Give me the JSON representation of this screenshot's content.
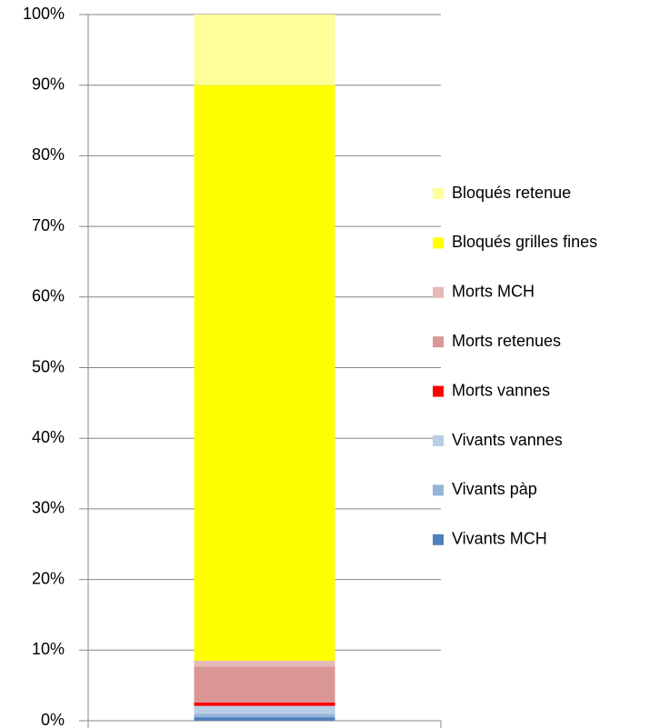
{
  "chart_data": {
    "type": "stacked_bar_100",
    "categories": [
      null
    ],
    "series": [
      {
        "name": "Vivants MCH",
        "color": "#4f81bd",
        "values": [
          0.5
        ]
      },
      {
        "name": "Vivants pàp",
        "color": "#95b3d7",
        "values": [
          0.5
        ]
      },
      {
        "name": "Vivants vannes",
        "color": "#b9cde5",
        "values": [
          1.1
        ]
      },
      {
        "name": "Morts vannes",
        "color": "#ff0000",
        "values": [
          0.5
        ]
      },
      {
        "name": "Morts retenues",
        "color": "#d99694",
        "values": [
          5.1
        ]
      },
      {
        "name": "Morts MCH",
        "color": "#e6b9b8",
        "values": [
          0.8
        ]
      },
      {
        "name": "Bloqués grilles fines",
        "color": "#ffff00",
        "values": [
          81.5
        ]
      },
      {
        "name": "Bloqués retenue",
        "color": "#ffff99",
        "values": [
          10
        ]
      }
    ],
    "ylim": [
      0,
      100
    ],
    "yticks": [
      {
        "value": 0,
        "label": "0%"
      },
      {
        "value": 10,
        "label": "10%"
      },
      {
        "value": 20,
        "label": "20%"
      },
      {
        "value": 30,
        "label": "30%"
      },
      {
        "value": 40,
        "label": "40%"
      },
      {
        "value": 50,
        "label": "50%"
      },
      {
        "value": 60,
        "label": "60%"
      },
      {
        "value": 70,
        "label": "70%"
      },
      {
        "value": 80,
        "label": "80%"
      },
      {
        "value": 90,
        "label": "90%"
      },
      {
        "value": 100,
        "label": "100%"
      }
    ],
    "grid": true,
    "legend": "right"
  }
}
